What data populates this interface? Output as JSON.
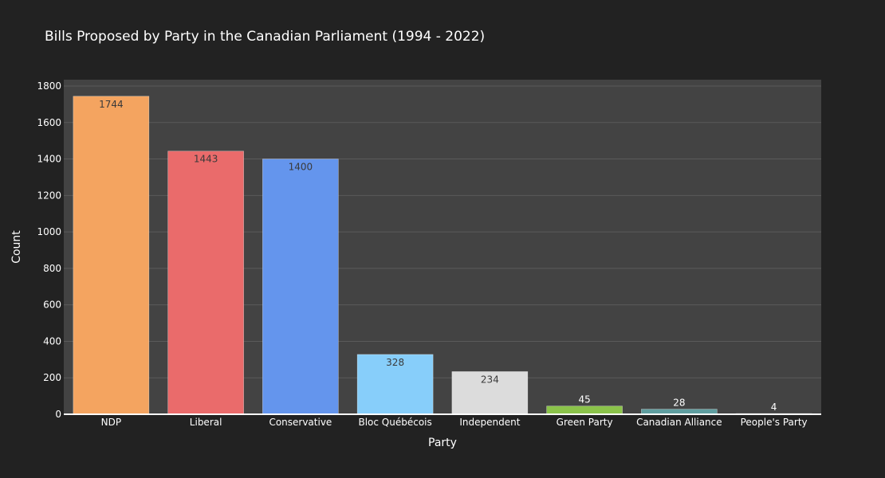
{
  "chart_data": {
    "type": "bar",
    "title": "Bills Proposed by Party in the Canadian Parliament (1994 - 2022)",
    "xlabel": "Party",
    "ylabel": "Count",
    "categories": [
      "NDP",
      "Liberal",
      "Conservative",
      "Bloc Québécois",
      "Independent",
      "Green Party",
      "Canadian Alliance",
      "People's Party"
    ],
    "values": [
      1744,
      1443,
      1400,
      328,
      234,
      45,
      28,
      4
    ],
    "bar_colors": [
      "#F4A460",
      "#EA6B6B",
      "#6495ED",
      "#87CEFA",
      "#DCDCDC",
      "#8BC34A",
      "#5F9EA0",
      "#7B68EE"
    ],
    "ylim": [
      0,
      1800
    ],
    "yticks": [
      0,
      200,
      400,
      600,
      800,
      1000,
      1200,
      1400,
      1600,
      1800
    ],
    "grid": true,
    "legend": "none",
    "colors": {
      "page_background": "#222222",
      "plot_background": "#434343",
      "gridline": "#5a5a5a",
      "text": "#ffffff",
      "label_inside": "#3a3a3a",
      "bar_outline": "#ffffff"
    }
  }
}
